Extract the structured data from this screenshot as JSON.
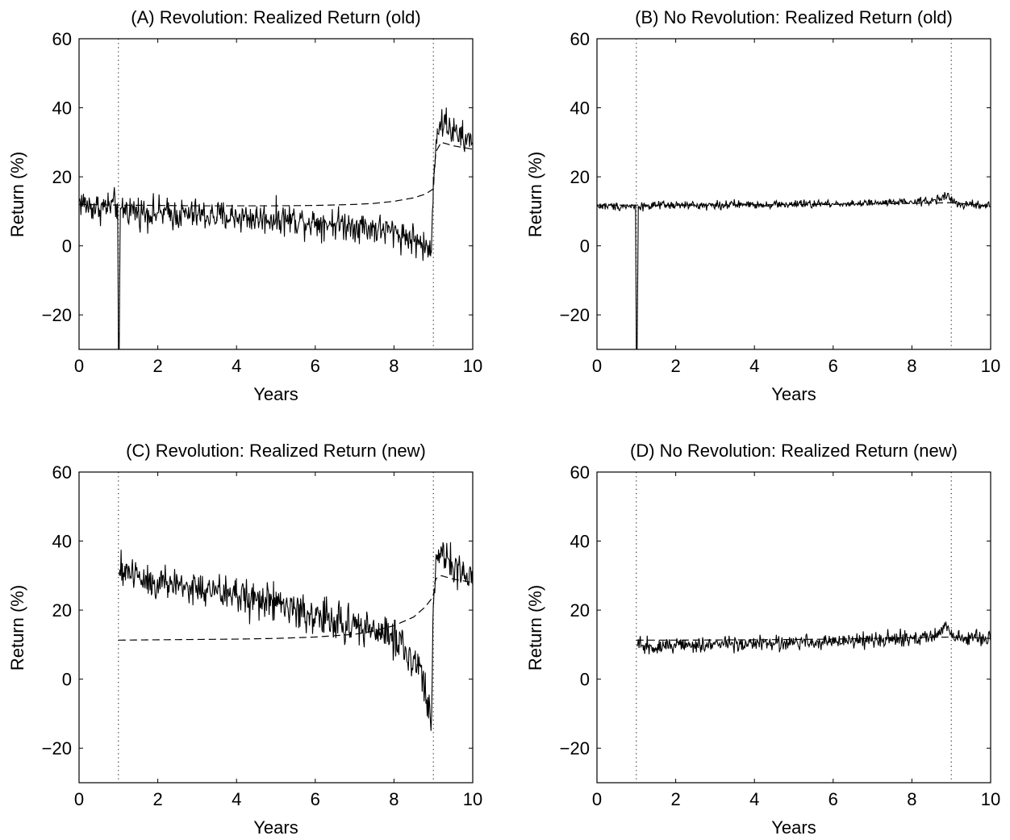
{
  "chart_data": [
    {
      "type": "line",
      "title": "(A) Revolution: Realized Return (old)",
      "xlabel": "Years",
      "ylabel": "Return (%)",
      "xlim": [
        0,
        10
      ],
      "ylim": [
        -30,
        60
      ],
      "xticks": [
        0,
        2,
        4,
        6,
        8,
        10
      ],
      "yticks": [
        -20,
        0,
        20,
        40,
        60
      ],
      "grid": false,
      "vlines": [
        1,
        9
      ],
      "series": [
        {
          "style": "solid",
          "x": [
            0,
            0.25,
            0.5,
            0.75,
            0.98,
            1.0,
            1.02,
            1.05,
            1.5,
            2,
            2.5,
            3,
            3.5,
            4,
            4.5,
            5,
            5.5,
            6,
            6.5,
            7,
            7.5,
            8,
            8.5,
            8.75,
            8.95,
            9.0,
            9.1,
            9.3,
            9.5,
            9.75,
            10
          ],
          "y": [
            13,
            11.5,
            11,
            11.5,
            12,
            -30,
            -30,
            11,
            10,
            9.5,
            9,
            9,
            8.5,
            8.5,
            8,
            8,
            7.5,
            7,
            6.5,
            6,
            5,
            4,
            2,
            0,
            -2,
            20,
            34,
            36,
            33,
            31,
            30
          ],
          "noise": 2.3
        },
        {
          "style": "dashed",
          "x": [
            0,
            1,
            2,
            3,
            4,
            5,
            6,
            7,
            7.5,
            8,
            8.5,
            8.8,
            9.0,
            9.05,
            9.2,
            9.5,
            10
          ],
          "y": [
            12,
            11.8,
            11.7,
            11.6,
            11.6,
            11.6,
            11.7,
            12,
            12.3,
            12.9,
            13.9,
            15,
            16.5,
            27,
            30,
            29,
            28
          ]
        }
      ]
    },
    {
      "type": "line",
      "title": "(B) No Revolution: Realized Return (old)",
      "xlabel": "Years",
      "ylabel": "Return (%)",
      "xlim": [
        0,
        10
      ],
      "ylim": [
        -30,
        60
      ],
      "xticks": [
        0,
        2,
        4,
        6,
        8,
        10
      ],
      "yticks": [
        -20,
        0,
        20,
        40,
        60
      ],
      "grid": false,
      "vlines": [
        1,
        9
      ],
      "series": [
        {
          "style": "solid",
          "x": [
            0,
            0.5,
            0.98,
            1.0,
            1.02,
            1.05,
            2,
            3,
            4,
            5,
            6,
            7,
            8,
            8.6,
            8.9,
            9.0,
            9.2,
            9.6,
            10
          ],
          "y": [
            11.5,
            11.5,
            11.5,
            -30,
            -30,
            11.5,
            11.7,
            11.8,
            12,
            12,
            12.2,
            12.3,
            12.6,
            13.2,
            14.8,
            13,
            12,
            11.8,
            11.5
          ],
          "noise": 0.6
        },
        {
          "style": "dashed",
          "x": [
            0,
            2,
            4,
            6,
            8,
            9,
            10
          ],
          "y": [
            11.8,
            11.8,
            11.9,
            12,
            12.3,
            12.5,
            11.5
          ]
        }
      ]
    },
    {
      "type": "line",
      "title": "(C) Revolution: Realized Return (new)",
      "xlabel": "Years",
      "ylabel": "Return (%)",
      "xlim": [
        0,
        10
      ],
      "ylim": [
        -30,
        60
      ],
      "xticks": [
        0,
        2,
        4,
        6,
        8,
        10
      ],
      "yticks": [
        -20,
        0,
        20,
        40,
        60
      ],
      "grid": false,
      "vlines": [
        1,
        9
      ],
      "series": [
        {
          "style": "solid",
          "x": [
            1.02,
            1.2,
            1.5,
            2,
            2.5,
            3,
            3.5,
            4,
            4.5,
            5,
            5.5,
            6,
            6.5,
            7,
            7.5,
            8,
            8.3,
            8.6,
            8.8,
            8.95,
            9.0,
            9.1,
            9.3,
            9.5,
            9.75,
            10
          ],
          "y": [
            30,
            32,
            30,
            28,
            27.5,
            26,
            25,
            24.5,
            23,
            22,
            20,
            18,
            17,
            15.5,
            14,
            12,
            9,
            4,
            -3,
            -12,
            22,
            36,
            35,
            32,
            30,
            29
          ],
          "noise": 2.8
        },
        {
          "style": "dashed",
          "x": [
            1,
            2,
            3,
            4,
            5,
            6,
            7,
            7.5,
            8,
            8.5,
            8.8,
            9.0,
            9.05,
            9.2,
            9.5,
            10
          ],
          "y": [
            11.3,
            11.4,
            11.5,
            11.6,
            11.8,
            12.2,
            13,
            14,
            15.5,
            18,
            21,
            24,
            29,
            30,
            29,
            28
          ]
        }
      ]
    },
    {
      "type": "line",
      "title": "(D) No Revolution: Realized Return (new)",
      "xlabel": "Years",
      "ylabel": "Return (%)",
      "xlim": [
        0,
        10
      ],
      "ylim": [
        -30,
        60
      ],
      "xticks": [
        0,
        2,
        4,
        6,
        8,
        10
      ],
      "yticks": [
        -20,
        0,
        20,
        40,
        60
      ],
      "grid": false,
      "vlines": [
        1,
        9
      ],
      "series": [
        {
          "style": "solid",
          "x": [
            1.02,
            2,
            3,
            4,
            5,
            6,
            7,
            8,
            8.6,
            8.9,
            9.0,
            9.2,
            9.6,
            10
          ],
          "y": [
            9.5,
            9.8,
            10,
            10.3,
            10.6,
            11,
            11.3,
            11.8,
            12.5,
            15,
            13,
            12,
            11.8,
            11.8
          ],
          "noise": 1.1
        },
        {
          "style": "dashed",
          "x": [
            1,
            2,
            4,
            6,
            8,
            9,
            10
          ],
          "y": [
            11.3,
            11.3,
            11.4,
            11.6,
            12,
            12.2,
            11.8
          ]
        }
      ]
    }
  ]
}
